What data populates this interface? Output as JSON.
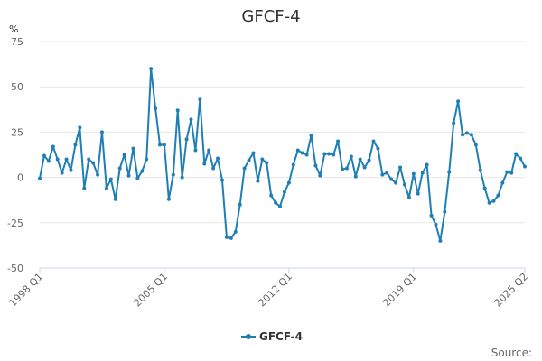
{
  "chart_data": {
    "type": "line",
    "title": "GFCF-4",
    "ylabel": "%",
    "xlabel": "",
    "ylim": [
      -50,
      75
    ],
    "yticks": [
      75,
      50,
      25,
      0,
      -25,
      -50
    ],
    "xticks": [
      "1998 Q1",
      "2005 Q1",
      "2012 Q1",
      "2019 Q1",
      "2025 Q2"
    ],
    "x_start": "1998 Q1",
    "x_end": "2025 Q2",
    "grid": true,
    "legend": "bottom-center",
    "series": [
      {
        "name": "GFCF-4",
        "color": "#1f7fb5",
        "values": [
          -0.5,
          12,
          9,
          17,
          10,
          2.5,
          10,
          4,
          18,
          27.5,
          -6,
          10,
          8,
          1.5,
          25,
          -6,
          -1,
          -12,
          5,
          12.5,
          1,
          16,
          -0.5,
          3.5,
          10,
          60,
          38,
          18,
          18,
          -12,
          1.5,
          37,
          0,
          21,
          32,
          15,
          43,
          7.5,
          15,
          5,
          10.5,
          -1.5,
          -33,
          -33.5,
          -30,
          -15,
          5,
          9.5,
          13.5,
          -2,
          10,
          8,
          -10,
          -14,
          -16,
          -8,
          -3,
          7,
          15,
          13.5,
          12.5,
          23,
          6.5,
          1,
          13,
          13,
          12.5,
          20,
          4.5,
          5,
          11.5,
          0.5,
          10,
          5.5,
          9.5,
          20,
          16,
          1.5,
          2.5,
          -1,
          -3,
          5.5,
          -4,
          -11,
          2,
          -9,
          2.5,
          7,
          -21,
          -26,
          -35,
          -19,
          3,
          30,
          42,
          23.5,
          24.5,
          23.5,
          18,
          4,
          -6,
          -14,
          -13,
          -10,
          -3,
          3,
          2.5,
          13,
          10.5,
          6
        ]
      }
    ]
  },
  "source_label": "Source:"
}
